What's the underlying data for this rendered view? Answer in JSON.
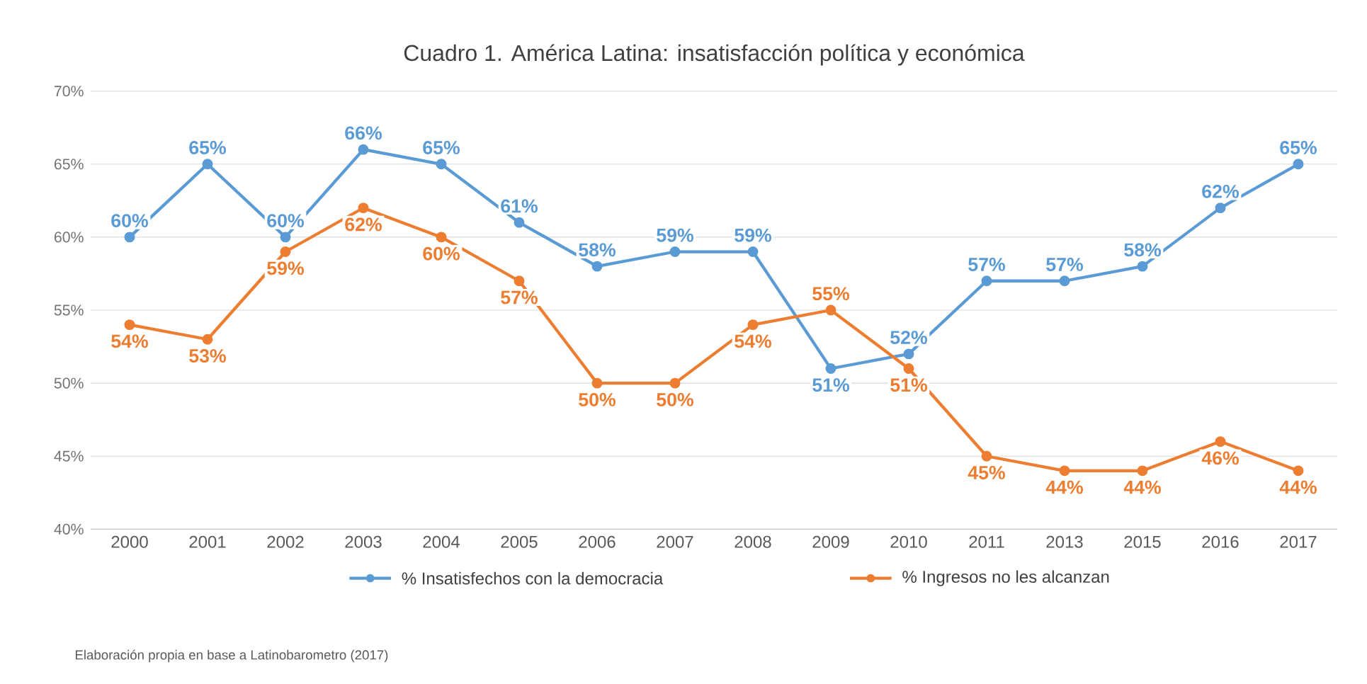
{
  "chart_data": {
    "type": "line",
    "title": "Cuadro 1. América Latina: insatisfacción política y económica",
    "categories": [
      "2000",
      "2001",
      "2002",
      "2003",
      "2004",
      "2005",
      "2006",
      "2007",
      "2008",
      "2009",
      "2010",
      "2011",
      "2013",
      "2015",
      "2016",
      "2017"
    ],
    "series": [
      {
        "name": "% Insatisfechos con la democracia",
        "color": "#5b9bd5",
        "values": [
          60,
          65,
          60,
          66,
          65,
          61,
          58,
          59,
          59,
          51,
          52,
          57,
          57,
          58,
          62,
          65
        ],
        "value_labels": [
          "60%",
          "65%",
          "60%",
          "66%",
          "65%",
          "61%",
          "58%",
          "59%",
          "59%",
          "51%",
          "52%",
          "57%",
          "57%",
          "58%",
          "62%",
          "65%"
        ]
      },
      {
        "name": "% Ingresos no les alcanzan",
        "color": "#ed7d31",
        "values": [
          54,
          53,
          59,
          62,
          60,
          57,
          50,
          50,
          54,
          55,
          51,
          45,
          44,
          44,
          46,
          44
        ],
        "value_labels": [
          "54%",
          "53%",
          "59%",
          "62%",
          "60%",
          "57%",
          "50%",
          "50%",
          "54%",
          "55%",
          "51%",
          "45%",
          "44%",
          "44%",
          "46%",
          "44%"
        ]
      }
    ],
    "ylim": [
      40,
      70
    ],
    "yticks": [
      {
        "value": 40,
        "label": "40%"
      },
      {
        "value": 45,
        "label": "45%"
      },
      {
        "value": 50,
        "label": "50%"
      },
      {
        "value": 55,
        "label": "55%"
      },
      {
        "value": 60,
        "label": "60%"
      },
      {
        "value": 65,
        "label": "65%"
      },
      {
        "value": 70,
        "label": "70%"
      }
    ],
    "grid": "y",
    "legend": "bottom",
    "marker": "circle",
    "line_style": "solid",
    "annotations": [
      "Elaboración propia en base a Latinobarometro (2017)"
    ]
  }
}
